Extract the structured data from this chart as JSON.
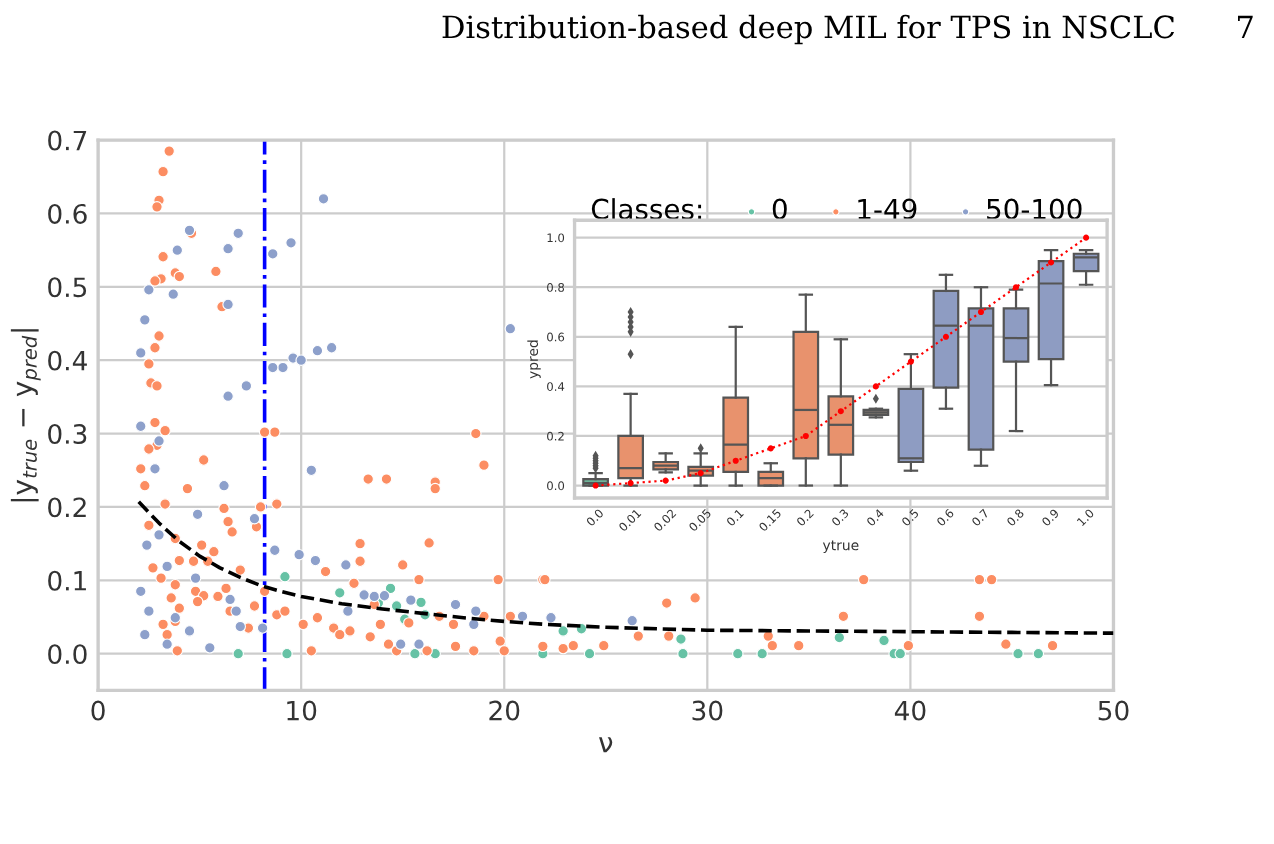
{
  "chart_data": [
    {
      "type": "scatter",
      "xlabel": "ν",
      "ylabel": "|y$_{true}$ − y$_{pred}$|",
      "legend_title": "Classes:",
      "legend": "top right",
      "grid": true,
      "marker": "circle",
      "annotations": [
        "Distribution-based deep MIL for TPS in NSCLC",
        "7"
      ],
      "xlim": [
        0,
        50
      ],
      "xticks": [
        0,
        10,
        20,
        30,
        40,
        50
      ],
      "ylim": [
        -0.05,
        0.7
      ],
      "yticks": [
        {
          "value": 0,
          "label": "0.0"
        },
        {
          "value": 0.1,
          "label": "0.1"
        },
        {
          "value": 0.2,
          "label": "0.2"
        },
        {
          "value": 0.3,
          "label": "0.3"
        },
        {
          "value": 0.4,
          "label": "0.4"
        },
        {
          "value": 0.5,
          "label": "0.5"
        },
        {
          "value": 0.6,
          "label": "0.6"
        },
        {
          "value": 0.7,
          "label": "0.7"
        }
      ],
      "ref_lines": [
        {
          "axis": "x",
          "value": 8.2,
          "color": "#0000ff",
          "line_style": "dashdot"
        }
      ],
      "series": [
        {
          "name": "0",
          "color": "#66c2a5",
          "x": [
            6.9,
            9.3,
            9.2,
            11.9,
            14.4,
            13.8,
            14.7,
            15.9,
            16.1,
            15.1,
            15.6,
            16.6,
            21.9,
            22.9,
            23.8,
            24.2,
            28.8,
            28.7,
            31.5,
            32.7,
            36.5,
            38.7,
            39.2,
            39.5,
            45.3,
            46.3
          ],
          "values": [
            0.0,
            0.0,
            0.105,
            0.083,
            0.089,
            0.069,
            0.065,
            0.07,
            0.053,
            0.047,
            0.0,
            0.0,
            0.0,
            0.031,
            0.034,
            0.0,
            0.0,
            0.02,
            0.0,
            0.0,
            0.022,
            0.018,
            0.0,
            0.0,
            0.0,
            0.0
          ]
        },
        {
          "name": "1-49",
          "color": "#fc8d62",
          "x": [
            3.5,
            3.2,
            3.0,
            2.9,
            3.2,
            3.1,
            2.8,
            3.8,
            4.0,
            4.6,
            5.8,
            6.1,
            3.0,
            2.8,
            2.5,
            2.6,
            2.9,
            2.8,
            3.3,
            2.9,
            2.5,
            2.1,
            2.3,
            5.2,
            4.4,
            6.2,
            8.0,
            8.7,
            8.2,
            8.8,
            3.3,
            2.5,
            6.4,
            7.8,
            3.8,
            5.1,
            6.6,
            4.0,
            4.7,
            5.4,
            5.7,
            2.7,
            3.1,
            3.8,
            4.8,
            5.2,
            5.9,
            7.0,
            6.3,
            3.6,
            4.0,
            4.9,
            6.5,
            7.7,
            8.2,
            8.8,
            9.2,
            3.2,
            3.4,
            3.9,
            3.8,
            7.4,
            10.1,
            10.5,
            10.8,
            11.2,
            11.6,
            11.9,
            12.4,
            12.6,
            12.9,
            12.9,
            13.3,
            14.2,
            13.4,
            13.9,
            13.6,
            14.3,
            14.7,
            15.0,
            15.3,
            15.8,
            16.2,
            16.3,
            16.6,
            16.6,
            16.8,
            17.5,
            17.6,
            18.5,
            18.6,
            19.0,
            19.0,
            19.7,
            19.8,
            20.0,
            20.3,
            21.9,
            21.9,
            22.0,
            22.9,
            23.4,
            24.9,
            26.6,
            28.0,
            28.1,
            29.4,
            33.0,
            33.2,
            34.5,
            36.7,
            37.7,
            39.9,
            43.4,
            44.0,
            43.4,
            44.7,
            47.0
          ],
          "values": [
            0.685,
            0.657,
            0.618,
            0.609,
            0.541,
            0.511,
            0.508,
            0.519,
            0.514,
            0.573,
            0.521,
            0.473,
            0.433,
            0.417,
            0.395,
            0.369,
            0.365,
            0.315,
            0.304,
            0.284,
            0.279,
            0.252,
            0.229,
            0.264,
            0.225,
            0.198,
            0.2,
            0.302,
            0.302,
            0.204,
            0.204,
            0.175,
            0.18,
            0.173,
            0.157,
            0.148,
            0.166,
            0.127,
            0.126,
            0.126,
            0.139,
            0.117,
            0.103,
            0.094,
            0.085,
            0.079,
            0.078,
            0.114,
            0.089,
            0.076,
            0.062,
            0.071,
            0.058,
            0.065,
            0.085,
            0.053,
            0.058,
            0.04,
            0.026,
            0.004,
            0.044,
            0.035,
            0.04,
            0.004,
            0.049,
            0.112,
            0.035,
            0.026,
            0.031,
            0.096,
            0.15,
            0.126,
            0.238,
            0.238,
            0.023,
            0.04,
            0.067,
            0.013,
            0.004,
            0.121,
            0.042,
            0.101,
            0.004,
            0.151,
            0.234,
            0.225,
            0.051,
            0.04,
            0.01,
            0.004,
            0.3,
            0.257,
            0.051,
            0.101,
            0.017,
            0.004,
            0.051,
            0.101,
            0.01,
            0.101,
            0.007,
            0.011,
            0.011,
            0.024,
            0.069,
            0.024,
            0.076,
            0.024,
            0.011,
            0.011,
            0.051,
            0.101,
            0.011,
            0.101,
            0.101,
            0.051,
            0.013,
            0.011
          ]
        },
        {
          "name": "50-100",
          "color": "#8da0cb",
          "x": [
            11.1,
            4.5,
            6.9,
            3.9,
            6.4,
            8.6,
            9.5,
            2.5,
            3.7,
            6.4,
            2.3,
            2.1,
            9.6,
            10.0,
            9.1,
            8.6,
            10.8,
            11.5,
            7.3,
            6.4,
            2.1,
            3.0,
            10.5,
            2.8,
            6.2,
            4.9,
            7.7,
            3.0,
            2.4,
            8.7,
            9.9,
            10.7,
            12.2,
            3.4,
            2.1,
            2.5,
            3.8,
            2.3,
            3.4,
            5.5,
            4.5,
            6.5,
            6.8,
            7.0,
            4.8,
            8.1,
            13.1,
            13.6,
            14.1,
            15.4,
            12.3,
            14.9,
            15.8,
            18.5,
            18.6,
            17.6,
            20.3,
            20.9,
            22.3,
            26.3
          ],
          "values": [
            0.62,
            0.577,
            0.573,
            0.55,
            0.552,
            0.545,
            0.56,
            0.496,
            0.49,
            0.476,
            0.455,
            0.41,
            0.403,
            0.4,
            0.39,
            0.39,
            0.413,
            0.417,
            0.365,
            0.351,
            0.31,
            0.29,
            0.25,
            0.252,
            0.229,
            0.19,
            0.184,
            0.162,
            0.148,
            0.141,
            0.135,
            0.127,
            0.121,
            0.119,
            0.085,
            0.058,
            0.049,
            0.026,
            0.013,
            0.008,
            0.031,
            0.074,
            0.058,
            0.037,
            0.103,
            0.035,
            0.08,
            0.078,
            0.079,
            0.073,
            0.058,
            0.013,
            0.013,
            0.04,
            0.058,
            0.067,
            0.443,
            0.051,
            0.049,
            0.045
          ]
        },
        {
          "type": "line",
          "color": "#000000",
          "line_style": "dashed",
          "marker": "none",
          "x": [
            2,
            3,
            4,
            5,
            6,
            7,
            8,
            9,
            10,
            12,
            14,
            16,
            18,
            20,
            22,
            25,
            30,
            35,
            40,
            45,
            50
          ],
          "values": [
            0.207,
            0.178,
            0.153,
            0.133,
            0.117,
            0.104,
            0.093,
            0.085,
            0.078,
            0.068,
            0.061,
            0.055,
            0.049,
            0.044,
            0.04,
            0.036,
            0.032,
            0.031,
            0.03,
            0.029,
            0.028
          ]
        }
      ]
    },
    {
      "type": "box",
      "xlabel": "ytrue",
      "ylabel": "ypred",
      "grid": "y",
      "categories": [
        "0.0",
        "0.01",
        "0.02",
        "0.05",
        "0.1",
        "0.15",
        "0.2",
        "0.3",
        "0.4",
        "0.5",
        "0.6",
        "0.7",
        "0.8",
        "0.9",
        "1.0"
      ],
      "colors": [
        "#6fb59a",
        "#e8926d",
        "#e8926d",
        "#e8926d",
        "#e8926d",
        "#e8926d",
        "#e8926d",
        "#e8926d",
        "#9a8c80",
        "#8e9cc2",
        "#8e9cc2",
        "#8e9cc2",
        "#8e9cc2",
        "#8e9cc2",
        "#8e9cc2"
      ],
      "ylim": [
        -0.05,
        1.07
      ],
      "yticks": [
        {
          "value": 0,
          "label": "0.0"
        },
        {
          "value": 0.2,
          "label": "0.2"
        },
        {
          "value": 0.4,
          "label": "0.4"
        },
        {
          "value": 0.6,
          "label": "0.6"
        },
        {
          "value": 0.8,
          "label": "0.8"
        },
        {
          "value": 1.0,
          "label": "1.0"
        }
      ],
      "boxes": [
        {
          "low": 0,
          "q1": 0,
          "median": 0.01,
          "q3": 0.026,
          "high": 0.05,
          "outliers": [
            0.07,
            0.08,
            0.09,
            0.1,
            0.11,
            0.12
          ]
        },
        {
          "low": 0,
          "q1": 0.03,
          "median": 0.07,
          "q3": 0.2,
          "high": 0.37,
          "outliers": [
            0.53,
            0.62,
            0.64,
            0.66,
            0.68,
            0.7
          ]
        },
        {
          "low": 0.053,
          "q1": 0.065,
          "median": 0.08,
          "q3": 0.095,
          "high": 0.13
        },
        {
          "low": 0,
          "q1": 0.04,
          "median": 0.06,
          "q3": 0.075,
          "high": 0.13,
          "outliers": [
            0.15
          ]
        },
        {
          "low": 0,
          "q1": 0.055,
          "median": 0.165,
          "q3": 0.355,
          "high": 0.64
        },
        {
          "low": 0,
          "q1": 0,
          "median": 0.03,
          "q3": 0.055,
          "high": 0.09
        },
        {
          "low": 0,
          "q1": 0.11,
          "median": 0.305,
          "q3": 0.62,
          "high": 0.77
        },
        {
          "low": 0,
          "q1": 0.125,
          "median": 0.245,
          "q3": 0.36,
          "high": 0.59
        },
        {
          "low": 0.275,
          "q1": 0.285,
          "median": 0.295,
          "q3": 0.305,
          "high": 0.31,
          "outliers": [
            0.35
          ]
        },
        {
          "low": 0.06,
          "q1": 0.095,
          "median": 0.11,
          "q3": 0.39,
          "high": 0.53
        },
        {
          "low": 0.31,
          "q1": 0.395,
          "median": 0.645,
          "q3": 0.785,
          "high": 0.85
        },
        {
          "low": 0.08,
          "q1": 0.145,
          "median": 0.645,
          "q3": 0.715,
          "high": 0.8
        },
        {
          "low": 0.22,
          "q1": 0.5,
          "median": 0.595,
          "q3": 0.715,
          "high": 0.79
        },
        {
          "low": 0.405,
          "q1": 0.51,
          "median": 0.815,
          "q3": 0.905,
          "high": 0.95
        },
        {
          "low": 0.81,
          "q1": 0.865,
          "median": 0.92,
          "q3": 0.935,
          "high": 0.95
        }
      ],
      "series": [
        {
          "type": "line",
          "color": "#ff0000",
          "line_style": "dotted",
          "marker": "circle",
          "values": [
            0,
            0.01,
            0.02,
            0.05,
            0.1,
            0.15,
            0.2,
            0.3,
            0.4,
            0.5,
            0.6,
            0.7,
            0.8,
            0.9,
            1.0
          ]
        }
      ]
    }
  ]
}
